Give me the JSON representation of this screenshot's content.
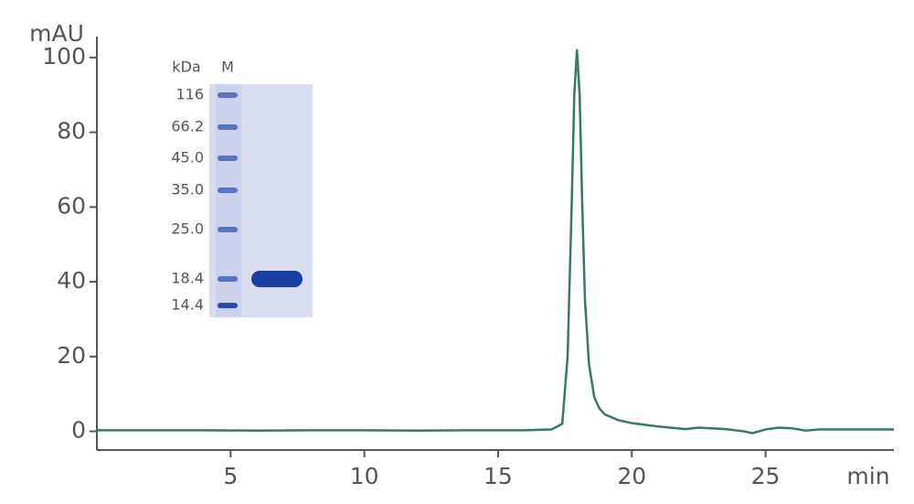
{
  "chart_data": {
    "type": "line",
    "x_label": "min",
    "y_label": "mAU",
    "xlim": [
      0,
      29.8
    ],
    "ylim": [
      -5,
      105.6
    ],
    "xticks": [
      5,
      10,
      15,
      20,
      25
    ],
    "yticks": [
      0,
      20,
      40,
      60,
      80,
      100
    ],
    "series": [
      {
        "color": "#3a7a5c",
        "x": [
          0,
          2,
          4,
          6,
          8,
          10,
          12,
          14,
          16,
          17,
          17.4,
          17.6,
          17.75,
          17.85,
          17.95,
          18.05,
          18.15,
          18.25,
          18.4,
          18.6,
          18.8,
          19.0,
          19.5,
          20,
          21,
          22,
          22.5,
          23.5,
          24.2,
          24.5,
          25,
          25.5,
          26,
          26.5,
          27,
          28,
          29.8
        ],
        "values": [
          0.3,
          0.3,
          0.3,
          0.2,
          0.3,
          0.3,
          0.2,
          0.3,
          0.3,
          0.5,
          2,
          20,
          60,
          90,
          102,
          90,
          60,
          35,
          18,
          9,
          6,
          4.5,
          3,
          2.2,
          1.3,
          0.6,
          1,
          0.6,
          0,
          -0.5,
          0.5,
          1,
          0.8,
          0.2,
          0.5,
          0.5,
          0.5
        ]
      }
    ],
    "gel": {
      "unit_label": "kDa",
      "lane_label": "M",
      "markers": [
        "116",
        "66.2",
        "45.0",
        "35.0",
        "25.0",
        "18.4",
        "14.4"
      ]
    }
  }
}
